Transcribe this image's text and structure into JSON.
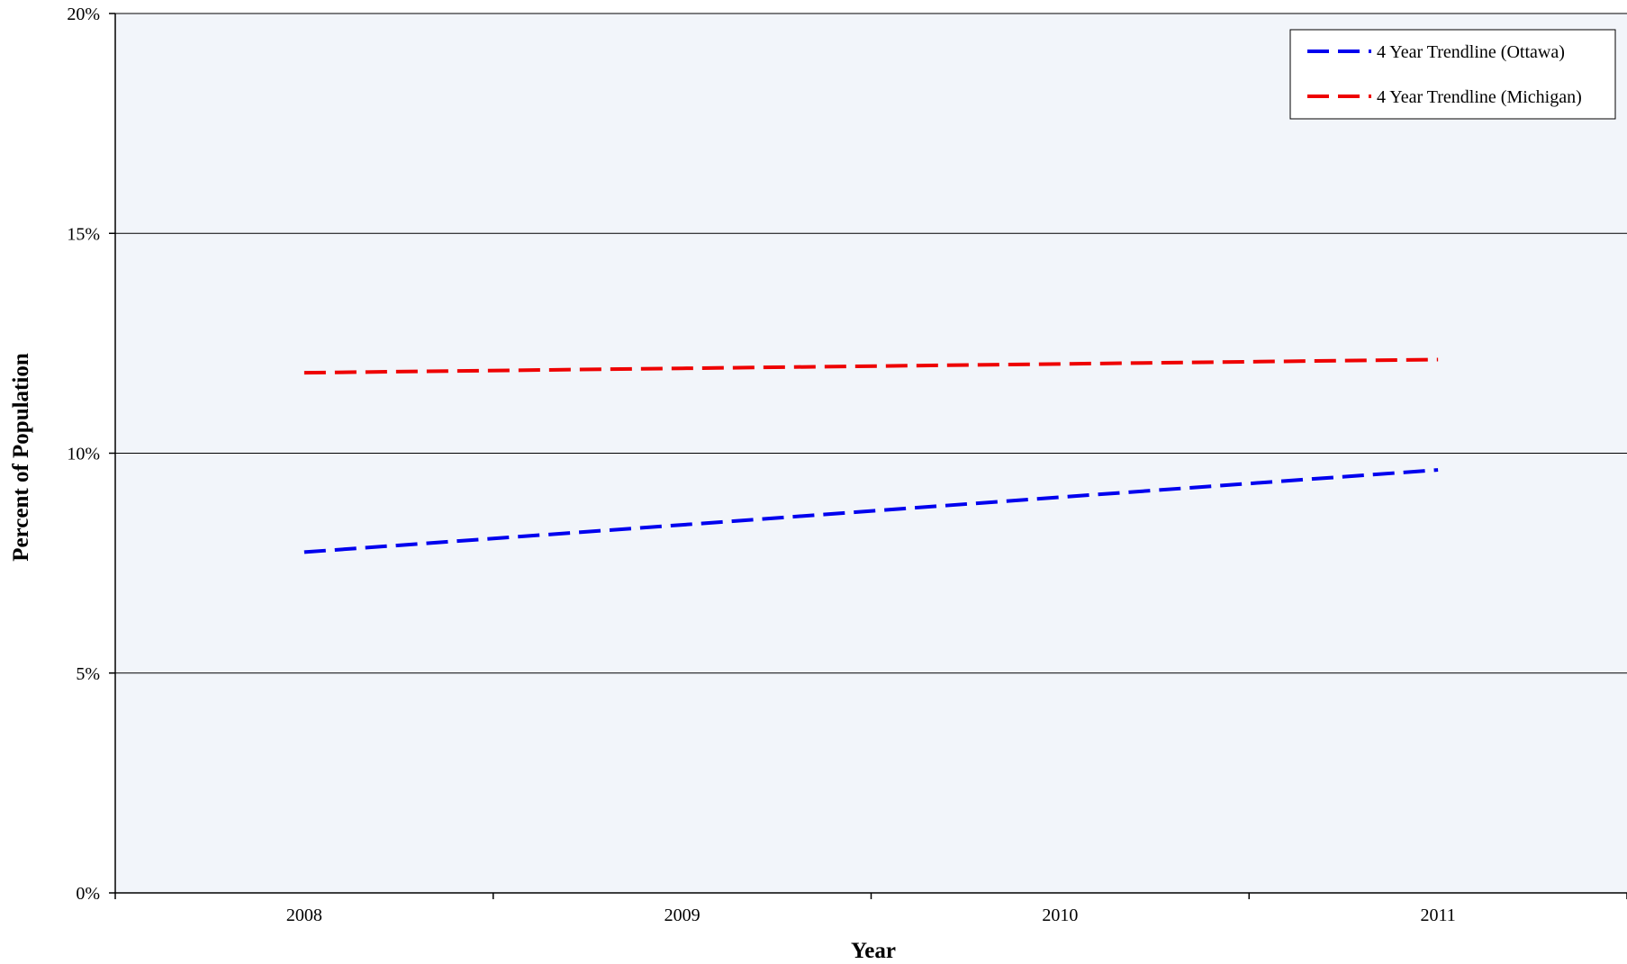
{
  "chart_data": {
    "type": "line",
    "title": "",
    "xlabel": "Year",
    "ylabel": "Percent of Population",
    "categories": [
      "2008",
      "2009",
      "2010",
      "2011"
    ],
    "x": [
      2008,
      2009,
      2010,
      2011
    ],
    "xlim": [
      2007.5,
      2011.5
    ],
    "ylim": [
      0,
      20
    ],
    "yticks": [
      0,
      5,
      10,
      15,
      20
    ],
    "ytick_labels": [
      "0%",
      "5%",
      "10%",
      "15%",
      "20%"
    ],
    "grid": true,
    "legend_position": "top-right",
    "plot_background": "#f2f5fa",
    "series": [
      {
        "name": "4 Year Trendline (Ottawa)",
        "color": "#0000ee",
        "line_style": "dashed",
        "values": [
          7.75,
          8.37,
          9.0,
          9.62
        ]
      },
      {
        "name": "4 Year Trendline (Michigan)",
        "color": "#ee0000",
        "line_style": "dashed",
        "values": [
          11.83,
          11.93,
          12.03,
          12.13
        ]
      }
    ]
  }
}
